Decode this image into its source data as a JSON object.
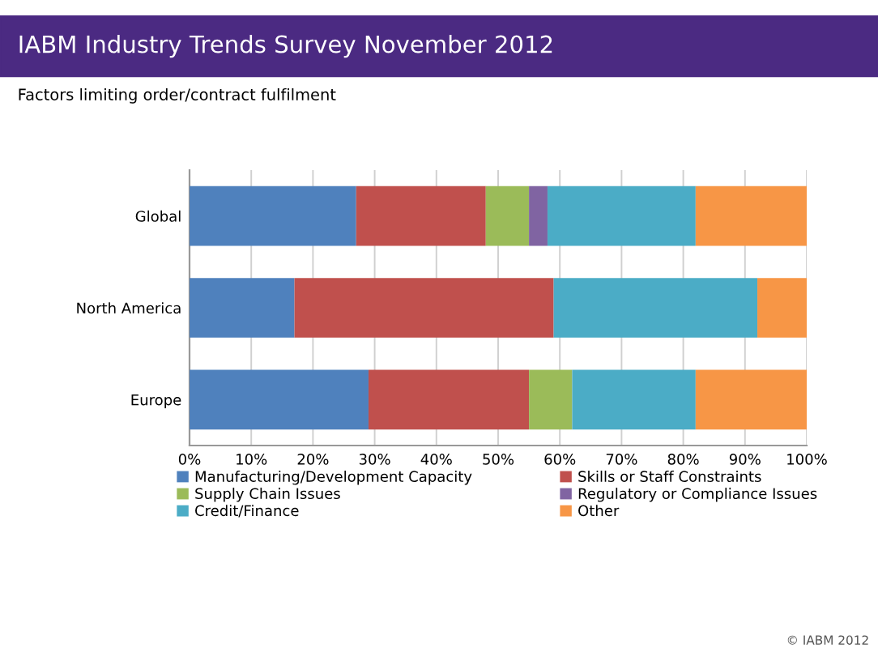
{
  "chart_data": {
    "type": "bar",
    "orientation": "horizontal",
    "stacked": true,
    "title": "IABM Industry Trends Survey November 2012",
    "subtitle": "Factors limiting order/contract fulfilment",
    "categories": [
      "Global",
      "North America",
      "Europe"
    ],
    "series": [
      {
        "name": "Manufacturing/Development Capacity",
        "color": "#4f81bd",
        "values": [
          27,
          17,
          29
        ]
      },
      {
        "name": "Skills or Staff Constraints",
        "color": "#c0504d",
        "values": [
          21,
          42,
          26
        ]
      },
      {
        "name": "Supply Chain Issues",
        "color": "#9bbb59",
        "values": [
          7,
          0,
          7
        ]
      },
      {
        "name": "Regulatory or Compliance Issues",
        "color": "#8064a2",
        "values": [
          3,
          0,
          0
        ]
      },
      {
        "name": "Credit/Finance",
        "color": "#4bacc6",
        "values": [
          24,
          33,
          20
        ]
      },
      {
        "name": "Other",
        "color": "#f79646",
        "values": [
          18,
          8,
          18
        ]
      }
    ],
    "xlim": [
      0,
      100
    ],
    "xticks": [
      {
        "value": 0,
        "label": "0%"
      },
      {
        "value": 10,
        "label": "10%"
      },
      {
        "value": 20,
        "label": "20%"
      },
      {
        "value": 30,
        "label": "30%"
      },
      {
        "value": 40,
        "label": "40%"
      },
      {
        "value": 50,
        "label": "50%"
      },
      {
        "value": 60,
        "label": "60%"
      },
      {
        "value": 70,
        "label": "70%"
      },
      {
        "value": 80,
        "label": "80%"
      },
      {
        "value": 90,
        "label": "90%"
      },
      {
        "value": 100,
        "label": "100%"
      }
    ],
    "grid": "x",
    "legend": "bottom",
    "annotations": [
      "© IABM 2012"
    ]
  }
}
